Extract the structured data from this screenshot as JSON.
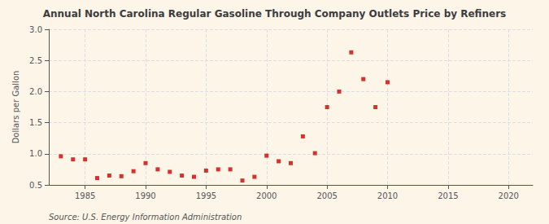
{
  "chart_data": {
    "type": "scatter",
    "title": "Annual North Carolina Regular Gasoline Through Company Outlets Price by Refiners",
    "y_label": "Dollars per Gallon",
    "annotations": [
      "Source: U.S. Energy Information Administration"
    ],
    "x": [
      1983,
      1984,
      1985,
      1986,
      1987,
      1988,
      1989,
      1990,
      1991,
      1992,
      1993,
      1994,
      1995,
      1996,
      1997,
      1998,
      1999,
      2000,
      2001,
      2002,
      2003,
      2004,
      2005,
      2006,
      2007,
      2008,
      2009,
      2010
    ],
    "values": [
      0.96,
      0.91,
      0.91,
      0.61,
      0.65,
      0.64,
      0.72,
      0.85,
      0.75,
      0.71,
      0.65,
      0.63,
      0.73,
      0.75,
      0.75,
      0.57,
      0.63,
      0.97,
      0.88,
      0.85,
      1.28,
      1.01,
      1.75,
      2.0,
      2.63,
      2.2,
      1.75,
      2.15
    ],
    "color": "#cc0000",
    "marker": "square",
    "xlim": [
      1982,
      2022
    ],
    "xticks": [
      1985,
      1990,
      1995,
      2000,
      2005,
      2010,
      2015,
      2020
    ],
    "ylim": [
      0.5,
      3.0
    ],
    "yticks": [
      0.5,
      {
        "value": 1.0,
        "label": "1.0"
      },
      1.5,
      {
        "value": 2.0,
        "label": "2.0"
      },
      2.5,
      {
        "value": 3.0,
        "label": "3.0"
      }
    ],
    "grid": true
  }
}
